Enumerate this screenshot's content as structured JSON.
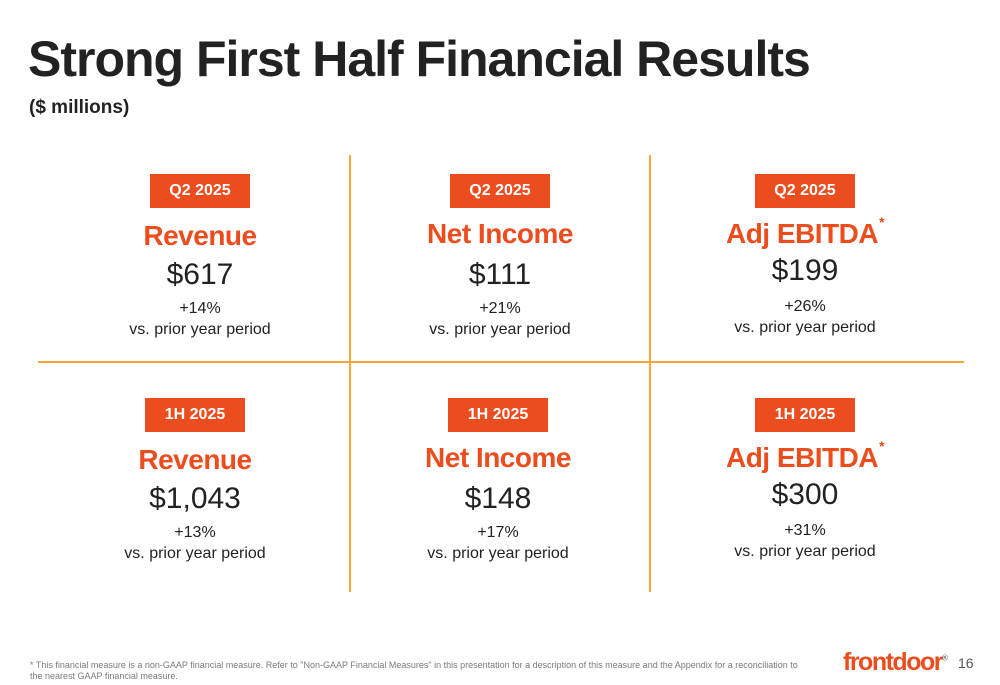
{
  "slide": {
    "title": "Strong First Half Financial Results",
    "subtitle": "($ millions)"
  },
  "q2_revenue": {
    "period": "Q2 2025",
    "metric": "Revenue",
    "value": "$617",
    "change": "+14%",
    "compare": "vs. prior year period",
    "asterisk": ""
  },
  "q2_net_income": {
    "period": "Q2 2025",
    "metric": "Net Income",
    "value": "$111",
    "change": "+21%",
    "compare": "vs. prior year period",
    "asterisk": ""
  },
  "q2_adj_ebitda": {
    "period": "Q2 2025",
    "metric": "Adj EBITDA",
    "value": "$199",
    "change": "+26%",
    "compare": "vs. prior year period",
    "asterisk": "*"
  },
  "h1_revenue": {
    "period": "1H 2025",
    "metric": "Revenue",
    "value": "$1,043",
    "change": "+13%",
    "compare": "vs. prior year period",
    "asterisk": ""
  },
  "h1_net_income": {
    "period": "1H 2025",
    "metric": "Net Income",
    "value": "$148",
    "change": "+17%",
    "compare": "vs. prior year period",
    "asterisk": ""
  },
  "h1_adj_ebitda": {
    "period": "1H 2025",
    "metric": "Adj EBITDA",
    "value": "$300",
    "change": "+31%",
    "compare": "vs. prior year period",
    "asterisk": "*"
  },
  "footer": {
    "footnote": "* This financial measure is a non-GAAP financial measure. Refer to \"Non-GAAP Financial Measures\" in this presentation for a description of this measure and the Appendix for a reconciliation to the nearest GAAP financial measure.",
    "logo_text": "frontdoor",
    "logo_tm": "®",
    "page_number": "16"
  },
  "colors": {
    "accent": "#ec4d1e",
    "divider": "#f7a83a"
  }
}
